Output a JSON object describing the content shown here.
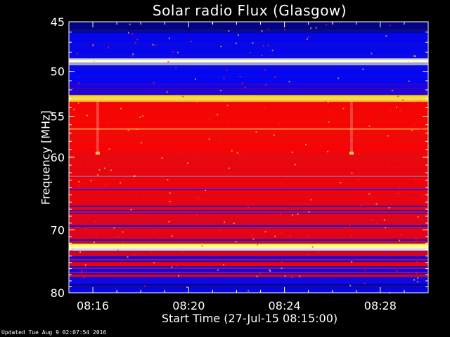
{
  "chart_data": {
    "type": "heatmap",
    "title": "Solar radio Flux (Glasgow)",
    "xlabel": "Start Time (27-Jul-15 08:15:00)",
    "ylabel": "Frequency [MHz]",
    "x_ticks": [
      "08:16",
      "08:20",
      "08:24",
      "08:28"
    ],
    "x_tick_minutes": [
      16,
      20,
      24,
      28
    ],
    "x_range_minutes": [
      15,
      30
    ],
    "y_ticks": [
      45,
      50,
      55,
      60,
      70,
      80
    ],
    "y_range_mhz": [
      45,
      80
    ],
    "y_scale": "log",
    "colormap": [
      "#000080",
      "#0000ff",
      "#ff0000",
      "#ffff00",
      "#ffffff"
    ]
  },
  "footer": "Updated Tue Aug  9 02:07:54 2016"
}
